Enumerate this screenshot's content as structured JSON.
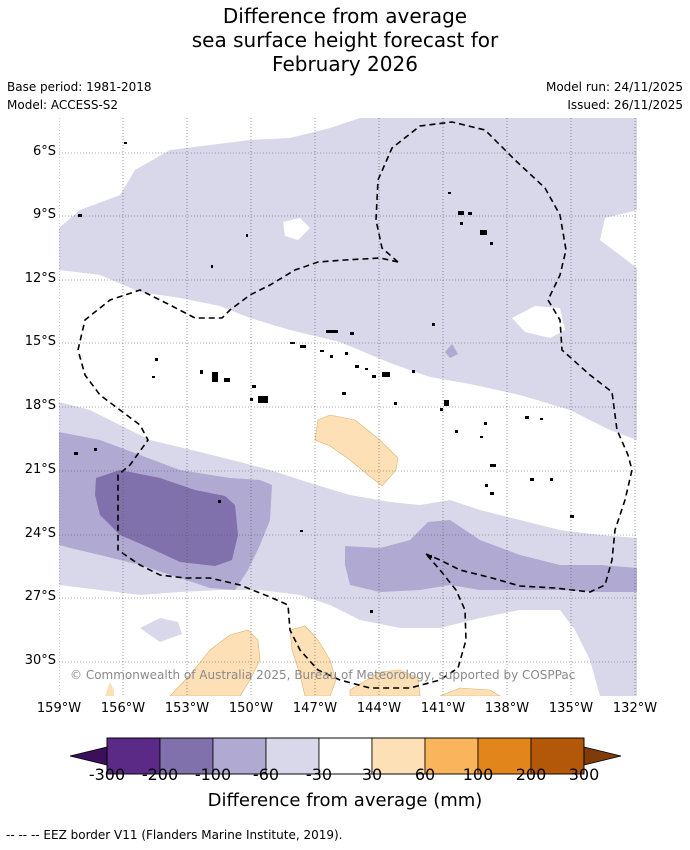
{
  "title": {
    "line1": "Difference from average",
    "line2": "sea surface height forecast for",
    "line3": "February 2026"
  },
  "meta": {
    "base_period": "Base period: 1981-2018",
    "model": "Model: ACCESS-S2",
    "model_run": "Model run: 24/11/2025",
    "issued": "Issued: 26/11/2025"
  },
  "map": {
    "lat_labels": [
      "6°S",
      "9°S",
      "12°S",
      "15°S",
      "18°S",
      "21°S",
      "24°S",
      "27°S",
      "30°S"
    ],
    "lon_labels": [
      "159°W",
      "156°W",
      "153°W",
      "150°W",
      "147°W",
      "144°W",
      "141°W",
      "138°W",
      "135°W",
      "132°W"
    ],
    "copyright": "© Commonwealth of Australia 2025, Bureau of Meteorology, supported by COSPPac"
  },
  "colorbar": {
    "title": "Difference from average (mm)",
    "tick_labels": [
      "-300",
      "-200",
      "-100",
      "-60",
      "-30",
      "30",
      "60",
      "100",
      "200",
      "300"
    ],
    "colors": [
      "#3b0f5a",
      "#5a2a86",
      "#8070ab",
      "#b0a9d2",
      "#d8d8ea",
      "#ffffff",
      "#fde0b6",
      "#fab55c",
      "#e2861b",
      "#b35808",
      "#7f3b08"
    ]
  },
  "footnote": "--  --  -- EEZ border V11 (Flanders Marine Institute, 2019)."
}
